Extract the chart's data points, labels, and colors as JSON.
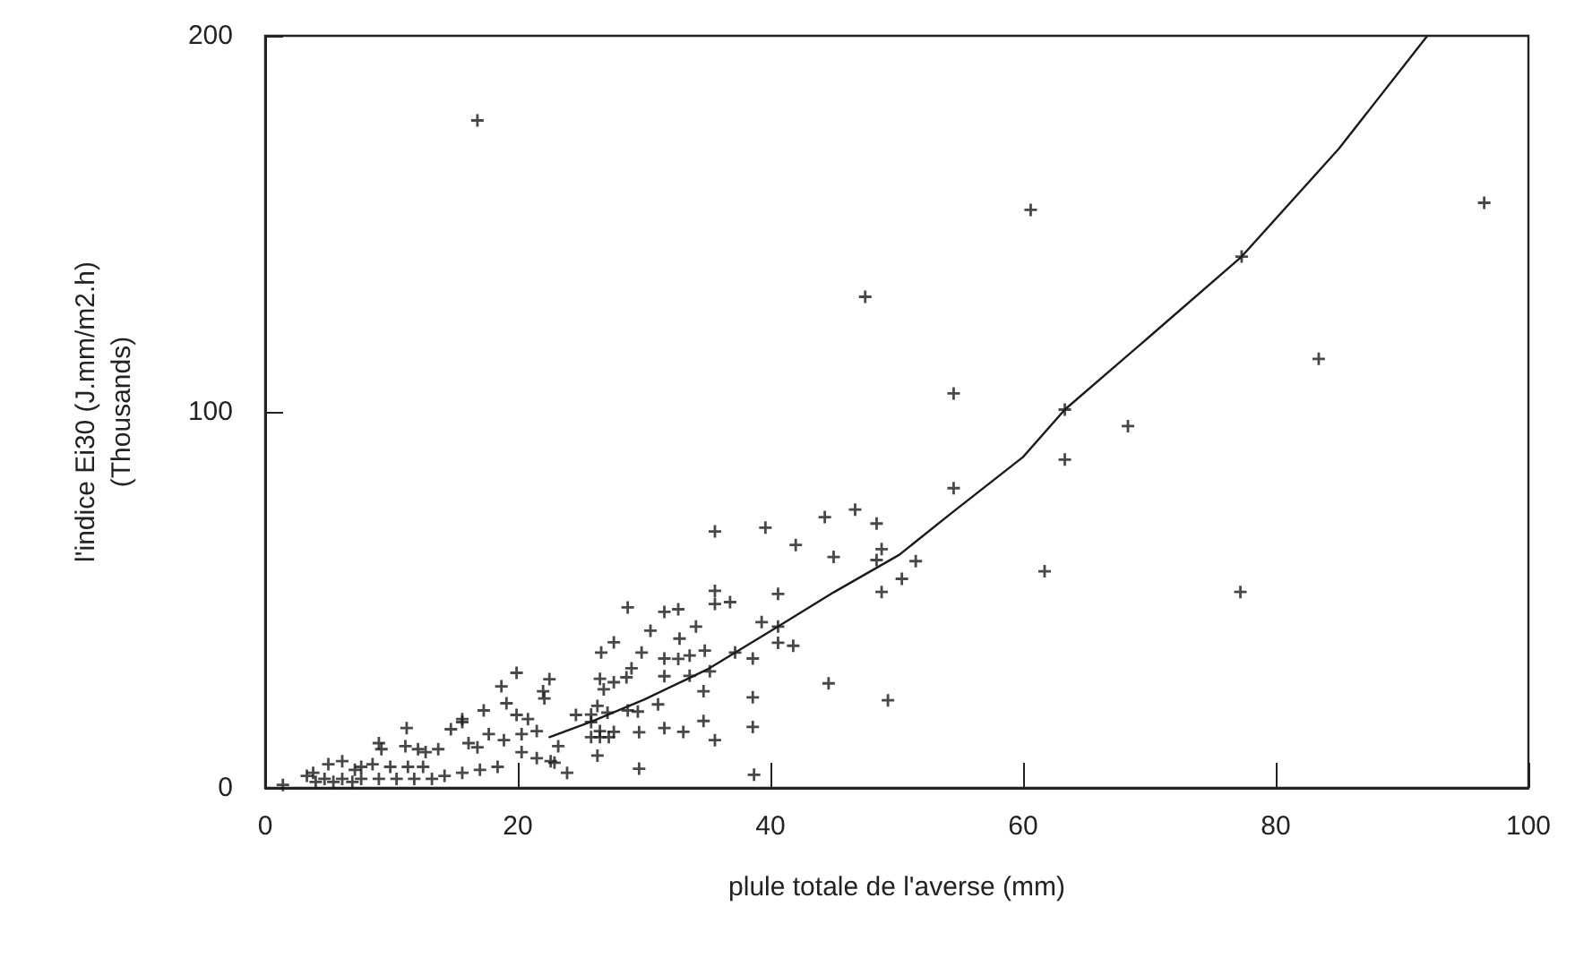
{
  "chart_data": {
    "type": "scatter",
    "xlabel": "plule totale de l'averse (mm)",
    "ylabel": "l'indice Ei30 (J.mm/m2.h)\n(Thousands)",
    "xlim": [
      0,
      100
    ],
    "xticks": [
      0,
      20,
      40,
      60,
      80,
      100
    ],
    "ylim": [
      0,
      200
    ],
    "yticks": [
      0,
      100,
      200
    ],
    "grid": false,
    "marker": "cross",
    "series": [
      {
        "color": "#1a1a1a",
        "x": [
          60.6,
          96.5,
          77.3,
          83.4,
          54.5,
          63.3,
          68.3,
          63.3,
          54.5,
          51.5,
          50.4,
          61.7,
          77.2,
          16.8,
          47.5,
          35.6,
          39.6,
          44.3,
          46.7,
          48.4,
          42.0,
          45.0,
          48.8,
          48.4,
          48.8,
          35.6,
          35.6,
          36.8,
          40.6,
          28.7,
          31.6,
          32.7,
          30.5,
          34.1,
          27.6,
          26.6,
          29.8,
          32.8,
          39.3,
          40.6,
          40.6,
          41.8,
          37.2,
          38.6,
          31.6,
          32.7,
          33.6,
          34.8,
          29.0,
          28.6,
          26.5,
          26.8,
          27.6,
          31.6,
          33.6,
          35.2,
          34.7,
          44.6,
          49.3,
          38.6,
          31.1,
          29.5,
          28.7,
          27.1,
          26.3,
          34.7,
          35.6,
          31.6,
          33.1,
          29.6,
          27.6,
          26.5,
          26.3,
          29.6,
          38.6,
          38.7,
          25.8,
          22.5,
          19.9,
          18.7,
          22.0,
          19.1,
          22.1,
          19.9,
          20.8,
          17.3,
          15.6,
          15.6,
          14.7,
          11.2,
          9.0,
          9.2,
          11.1,
          12.1,
          12.7,
          13.7,
          16.1,
          16.8,
          17.7,
          18.9,
          20.3,
          21.5,
          20.3,
          21.5,
          22.6,
          23.2,
          22.9,
          23.9,
          24.6,
          25.8,
          26.5,
          25.8,
          27.2,
          8.5,
          7.1,
          5.0,
          6.1,
          7.6,
          9.9,
          11.3,
          12.5,
          3.8,
          3.3,
          4.7,
          6.1,
          7.6,
          9.0,
          10.4,
          11.8,
          13.2,
          4.0,
          5.4,
          6.9,
          1.4,
          14.2,
          15.6,
          17.0,
          18.4
        ],
        "values": [
          153.7,
          155.6,
          141.3,
          114.1,
          104.9,
          100.6,
          96.2,
          87.3,
          79.7,
          60.3,
          55.6,
          57.6,
          52.1,
          177.5,
          130.6,
          68.2,
          69.2,
          72,
          74,
          70.3,
          64.6,
          61.4,
          63.5,
          60.6,
          52.1,
          52.4,
          48.9,
          49.4,
          51.6,
          48.0,
          46.8,
          47.5,
          41.8,
          42.9,
          38.7,
          36.0,
          36.0,
          39.7,
          44.1,
          42.9,
          38.6,
          37.8,
          36.0,
          34.4,
          34.4,
          34.3,
          35.2,
          36.5,
          31.8,
          29.4,
          29.0,
          26.2,
          28.1,
          29.7,
          29.8,
          31.0,
          25.7,
          27.8,
          23.3,
          24.1,
          22.2,
          20.3,
          20.6,
          20.0,
          21.8,
          17.8,
          12.7,
          15.9,
          14.9,
          14.8,
          14.9,
          13.5,
          8.6,
          5.1,
          16.2,
          3.5,
          17.5,
          28.9,
          30.6,
          27.0,
          25.7,
          22.5,
          23.8,
          19.4,
          18.3,
          20.6,
          18.3,
          17.5,
          15.6,
          15.9,
          11.9,
          10.3,
          11.1,
          10.3,
          9.5,
          10.3,
          11.9,
          10.8,
          14.3,
          12.7,
          14.3,
          15.1,
          9.5,
          7.9,
          7.1,
          11.1,
          6.7,
          4.0,
          19.4,
          19.5,
          15.1,
          13.5,
          13.5,
          6.3,
          4.8,
          6.3,
          7.1,
          5.6,
          5.6,
          5.6,
          5.6,
          4.0,
          3.2,
          2.4,
          2.4,
          2.4,
          2.4,
          2.4,
          2.4,
          2.4,
          1.6,
          1.6,
          1.6,
          0.8,
          3.2,
          4.0,
          4.8,
          5.6
        ]
      },
      {
        "type": "line",
        "color": "#1a1a1a",
        "marker": "none",
        "line_style": "solid",
        "x": [
          22.5,
          25.8,
          30,
          35,
          40.6,
          45,
          50.2,
          54.3,
          60,
          63.3,
          70,
          77.3,
          85,
          92
        ],
        "values": [
          13.5,
          17.6,
          23.5,
          31.5,
          42.9,
          52,
          62,
          73,
          88,
          100.6,
          120,
          141.3,
          170,
          200
        ]
      }
    ]
  }
}
